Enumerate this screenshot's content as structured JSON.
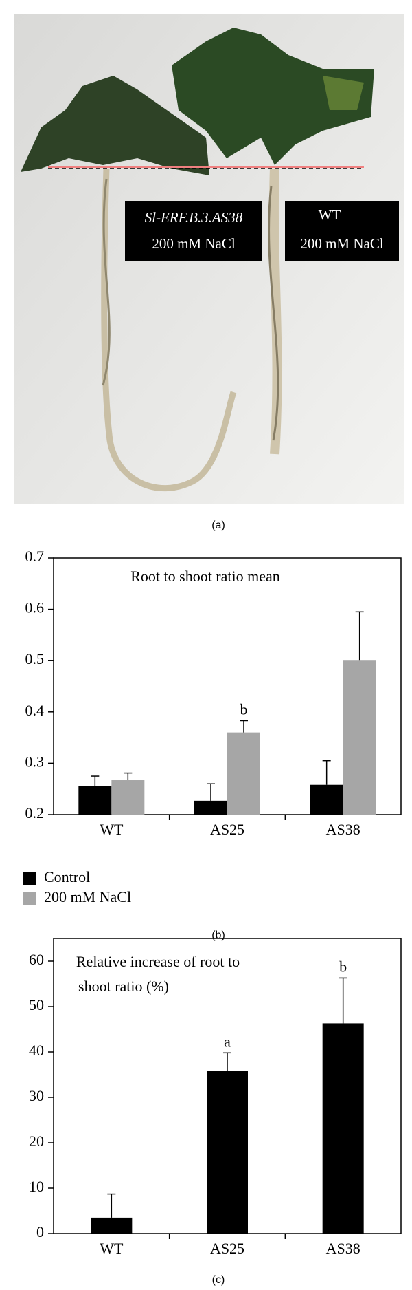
{
  "photo": {
    "labels": [
      {
        "line1": "Sl-ERF.B.3.AS38",
        "line2": "200 mM NaCl"
      },
      {
        "line1": "WT",
        "line2": "200 mM NaCl"
      }
    ],
    "caption": "(a)"
  },
  "chart_data": [
    {
      "type": "bar",
      "title": "Root to shoot ratio mean",
      "categories": [
        "WT",
        "AS25",
        "AS38"
      ],
      "series": [
        {
          "name": "Control",
          "color": "#000000",
          "values": [
            0.255,
            0.227,
            0.258
          ],
          "errors": [
            0.02,
            0.033,
            0.047
          ]
        },
        {
          "name": "200 mM NaCl",
          "color": "#a6a6a6",
          "values": [
            0.267,
            0.36,
            0.5
          ],
          "errors": [
            0.014,
            0.023,
            0.095
          ]
        }
      ],
      "annotations": [
        {
          "text": "b",
          "category": "AS25",
          "series": "200 mM NaCl"
        }
      ],
      "ylim": [
        0.2,
        0.7
      ],
      "yticks": [
        0.2,
        0.3,
        0.4,
        0.5,
        0.6,
        0.7
      ],
      "legend": "bottom-left",
      "caption": "(b)"
    },
    {
      "type": "bar",
      "title": [
        "Relative increase of root to",
        "shoot ratio (%)"
      ],
      "categories": [
        "WT",
        "AS25",
        "AS38"
      ],
      "values": [
        3.5,
        35.8,
        46.3
      ],
      "errors": [
        5.2,
        4,
        10
      ],
      "color": "#000000",
      "annotations": [
        {
          "text": "a",
          "category": "AS25"
        },
        {
          "text": "b",
          "category": "AS38"
        }
      ],
      "ylim": [
        0,
        65
      ],
      "yticks": [
        0,
        10,
        20,
        30,
        40,
        50,
        60
      ],
      "caption": "(c)"
    }
  ]
}
